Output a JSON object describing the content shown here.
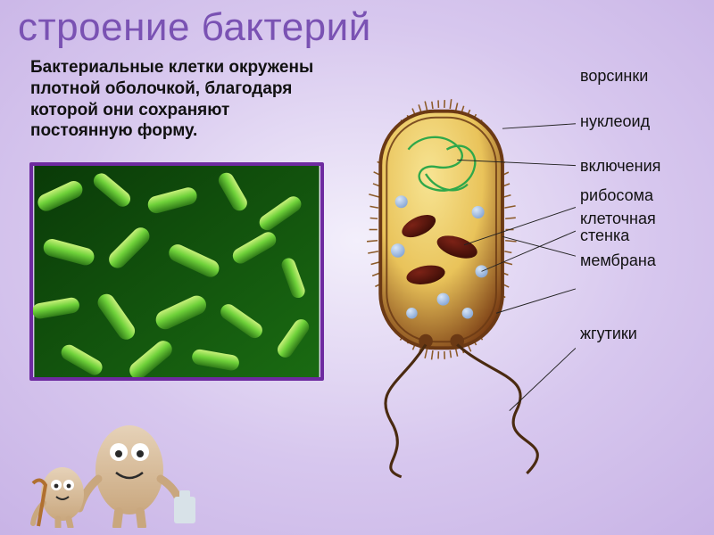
{
  "title": {
    "text": "строение бактерий",
    "color": "#7a52b3",
    "fontsize": 44
  },
  "description": {
    "text": "Бактериальные клетки окружены плотной оболочкой, благодаря которой они сохраняют постоянную форму.",
    "fontsize": 19,
    "color": "#111111"
  },
  "background": {
    "gradient_from": "#d7c7ee",
    "gradient_mid": "#f3effb",
    "gradient_to": "#c8b3e6"
  },
  "microscope_image": {
    "border_color": "#6e2aa0",
    "bg_from": "#0a3a08",
    "bg_to": "#1a6b12",
    "rod_fill": "#6fd23a",
    "rod_highlight": "#c8f07a",
    "rod_shadow": "#2f7a18"
  },
  "cell": {
    "type": "diagram",
    "body_fill_top": "#f7e493",
    "body_fill_mid": "#e9c35a",
    "body_fill_bottom": "#7a3d14",
    "body_stroke": "#6b3914",
    "pili_color": "#8c5a28",
    "nucleoid_stroke": "#2fa84a",
    "inclusion_fill": "#7c2216",
    "inclusion_shadow": "#3d0e07",
    "ribosome_fill": "#8aa9d6",
    "ribosome_highlight": "#d8e6f7",
    "flagella_stroke": "#4a2a10",
    "leader_color": "#222222"
  },
  "labels": {
    "fontsize": 18,
    "color": "#111111",
    "items": [
      {
        "text": "ворсинки",
        "gap_after": 30
      },
      {
        "text": "нуклеоид",
        "gap_after": 30
      },
      {
        "text": "включения",
        "gap_after": 12
      },
      {
        "text": "рибосома",
        "gap_after": 6
      },
      {
        "text": "клеточная стенка",
        "twoline": true,
        "gap_after": 8
      },
      {
        "text": "мембрана",
        "gap_after": 62
      },
      {
        "text": "жгутики",
        "gap_after": 0
      }
    ]
  },
  "mascots": {
    "body_fill_light": "#e6d2b8",
    "body_fill_dark": "#c9a77e",
    "eye_white": "#ffffff",
    "pupil": "#2a2a2a",
    "cane_color": "#b07030",
    "bag_color": "#d8e2e8"
  }
}
